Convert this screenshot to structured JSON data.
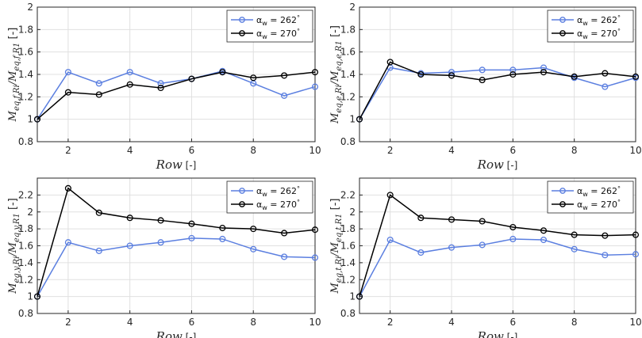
{
  "chart_data": [
    {
      "type": "line",
      "ylabel": "M_eq,f,R_i / M_eq,f,R_1",
      "ylabel_unit": "[-]",
      "xlabel": "Row",
      "xlabel_unit": "[-]",
      "xlim": [
        1,
        10
      ],
      "ylim": [
        0.8,
        2.0
      ],
      "xticks": [
        2,
        4,
        6,
        8,
        10
      ],
      "yticks": [
        0.8,
        1,
        1.2,
        1.4,
        1.6,
        1.8,
        2
      ],
      "grid": true,
      "legend_position": "top-right",
      "x": [
        1,
        2,
        3,
        4,
        5,
        6,
        7,
        8,
        9,
        10
      ],
      "series": [
        {
          "name": "α_w = 262°",
          "values": [
            1.0,
            1.42,
            1.32,
            1.42,
            1.32,
            1.36,
            1.43,
            1.32,
            1.21,
            1.29
          ]
        },
        {
          "name": "α_w = 270°",
          "values": [
            1.0,
            1.24,
            1.22,
            1.31,
            1.28,
            1.36,
            1.42,
            1.37,
            1.39,
            1.42
          ]
        }
      ]
    },
    {
      "type": "line",
      "ylabel": "M_eq,e,R_i / M_eq,e,R_1",
      "ylabel_unit": "[-]",
      "xlabel": "Row",
      "xlabel_unit": "[-]",
      "xlim": [
        1,
        10
      ],
      "ylim": [
        0.8,
        2.0
      ],
      "xticks": [
        2,
        4,
        6,
        8,
        10
      ],
      "yticks": [
        0.8,
        1,
        1.2,
        1.4,
        1.6,
        1.8,
        2
      ],
      "grid": true,
      "legend_position": "top-right",
      "x": [
        1,
        2,
        3,
        4,
        5,
        6,
        7,
        8,
        9,
        10
      ],
      "series": [
        {
          "name": "α_w = 262°",
          "values": [
            1.0,
            1.46,
            1.41,
            1.42,
            1.44,
            1.44,
            1.46,
            1.37,
            1.29,
            1.37
          ]
        },
        {
          "name": "α_w = 270°",
          "values": [
            1.0,
            1.51,
            1.4,
            1.39,
            1.35,
            1.4,
            1.42,
            1.38,
            1.41,
            1.38
          ]
        }
      ]
    },
    {
      "type": "line",
      "ylabel": "M_eq,y,R_i / M_eq,y,R_1",
      "ylabel_unit": "[-]",
      "xlabel": "Row",
      "xlabel_unit": "[-]",
      "xlim": [
        1,
        10
      ],
      "ylim": [
        0.8,
        2.4
      ],
      "xticks": [
        2,
        4,
        6,
        8,
        10
      ],
      "yticks": [
        0.8,
        1,
        1.2,
        1.4,
        1.6,
        1.8,
        2,
        2.2
      ],
      "grid": true,
      "legend_position": "top-right",
      "x": [
        1,
        2,
        3,
        4,
        5,
        6,
        7,
        8,
        9,
        10
      ],
      "series": [
        {
          "name": "α_w = 262°",
          "values": [
            1.0,
            1.64,
            1.54,
            1.6,
            1.64,
            1.69,
            1.68,
            1.56,
            1.47,
            1.46
          ]
        },
        {
          "name": "α_w = 270°",
          "values": [
            1.0,
            2.28,
            1.99,
            1.93,
            1.9,
            1.86,
            1.81,
            1.8,
            1.75,
            1.79
          ]
        }
      ]
    },
    {
      "type": "line",
      "ylabel": "M_eq,t,R_i / M_eq,t,R_1",
      "ylabel_unit": "[-]",
      "xlabel": "Row",
      "xlabel_unit": "[-]",
      "xlim": [
        1,
        10
      ],
      "ylim": [
        0.8,
        2.4
      ],
      "xticks": [
        2,
        4,
        6,
        8,
        10
      ],
      "yticks": [
        0.8,
        1,
        1.2,
        1.4,
        1.6,
        1.8,
        2,
        2.2
      ],
      "grid": true,
      "legend_position": "top-right",
      "x": [
        1,
        2,
        3,
        4,
        5,
        6,
        7,
        8,
        9,
        10
      ],
      "series": [
        {
          "name": "α_w = 262°",
          "values": [
            1.0,
            1.67,
            1.52,
            1.58,
            1.61,
            1.68,
            1.67,
            1.56,
            1.49,
            1.5
          ]
        },
        {
          "name": "α_w = 270°",
          "values": [
            1.0,
            2.2,
            1.93,
            1.91,
            1.89,
            1.82,
            1.78,
            1.73,
            1.72,
            1.73
          ]
        }
      ]
    }
  ],
  "colors": {
    "series_262": "#5b7fe0",
    "series_270": "#000000",
    "grid": "#e0e0e0",
    "axes": "#262626"
  }
}
